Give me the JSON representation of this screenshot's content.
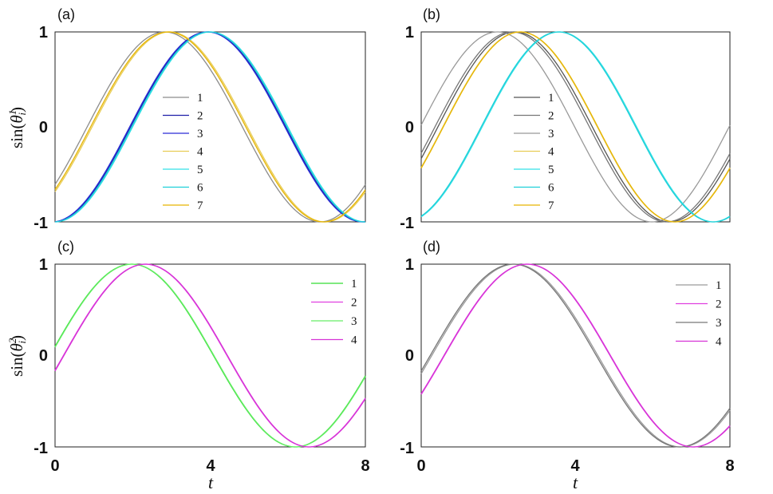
{
  "chart_data": [
    {
      "panel": "(a)",
      "type": "line",
      "ylabel": "sin(θ_i^1)",
      "xlabel": "",
      "xlim": [
        0,
        8
      ],
      "ylim": [
        -1,
        1
      ],
      "xticks": [],
      "yticks": [
        "-1",
        "0",
        "1"
      ],
      "legend_position": "center",
      "series": [
        {
          "name": "1",
          "color": "#8c8c8c",
          "omega": 0.785,
          "phi": -0.65
        },
        {
          "name": "2",
          "color": "#1f1fa8",
          "omega": 0.785,
          "phi": -1.53
        },
        {
          "name": "3",
          "color": "#2b2bd6",
          "omega": 0.785,
          "phi": -1.51
        },
        {
          "name": "4",
          "color": "#e8cc55",
          "omega": 0.785,
          "phi": -0.75
        },
        {
          "name": "5",
          "color": "#33e0e6",
          "omega": 0.785,
          "phi": -1.57
        },
        {
          "name": "6",
          "color": "#1fd0d8",
          "omega": 0.785,
          "phi": -1.55
        },
        {
          "name": "7",
          "color": "#e6b400",
          "omega": 0.785,
          "phi": -0.72
        }
      ]
    },
    {
      "panel": "(b)",
      "type": "line",
      "ylabel": "",
      "xlabel": "",
      "xlim": [
        0,
        8
      ],
      "ylim": [
        -1,
        1
      ],
      "xticks": [],
      "yticks": [
        "-1",
        "0",
        "1"
      ],
      "legend_position": "center",
      "series": [
        {
          "name": "1",
          "color": "#555555",
          "omega": 0.785,
          "phi": -0.34
        },
        {
          "name": "2",
          "color": "#777777",
          "omega": 0.785,
          "phi": -0.28
        },
        {
          "name": "3",
          "color": "#999999",
          "omega": 0.785,
          "phi": 0.02
        },
        {
          "name": "4",
          "color": "#e8cc55",
          "omega": 0.785,
          "phi": -0.44
        },
        {
          "name": "5",
          "color": "#33e0e6",
          "omega": 0.785,
          "phi": -1.24
        },
        {
          "name": "6",
          "color": "#1fd0d8",
          "omega": 0.785,
          "phi": -1.22
        },
        {
          "name": "7",
          "color": "#e6b400",
          "omega": 0.785,
          "phi": -0.45
        }
      ]
    },
    {
      "panel": "(c)",
      "type": "line",
      "ylabel": "sin(θ_i^2)",
      "xlabel": "t",
      "xlim": [
        0,
        8
      ],
      "ylim": [
        -1,
        1
      ],
      "xticks": [
        "0",
        "4",
        "8"
      ],
      "yticks": [
        "-1",
        "0",
        "1"
      ],
      "legend_position": "top-right",
      "series": [
        {
          "name": "1",
          "color": "#33dd33",
          "omega": 0.745,
          "phi": 0.1
        },
        {
          "name": "2",
          "color": "#e040e0",
          "omega": 0.745,
          "phi": -0.16
        },
        {
          "name": "3",
          "color": "#66ee66",
          "omega": 0.745,
          "phi": 0.09
        },
        {
          "name": "4",
          "color": "#d633d6",
          "omega": 0.745,
          "phi": -0.17
        }
      ]
    },
    {
      "panel": "(d)",
      "type": "line",
      "ylabel": "",
      "xlabel": "t",
      "xlim": [
        0,
        8
      ],
      "ylim": [
        -1,
        1
      ],
      "xticks": [
        "0",
        "4",
        "8"
      ],
      "yticks": [
        "-1",
        "0",
        "1"
      ],
      "legend_position": "top-right",
      "series": [
        {
          "name": "1",
          "color": "#9a9a9a",
          "omega": 0.73,
          "phi": -0.2
        },
        {
          "name": "2",
          "color": "#e040e0",
          "omega": 0.73,
          "phi": -0.44
        },
        {
          "name": "3",
          "color": "#777777",
          "omega": 0.73,
          "phi": -0.17
        },
        {
          "name": "4",
          "color": "#d633d6",
          "omega": 0.73,
          "phi": -0.43
        }
      ]
    }
  ]
}
